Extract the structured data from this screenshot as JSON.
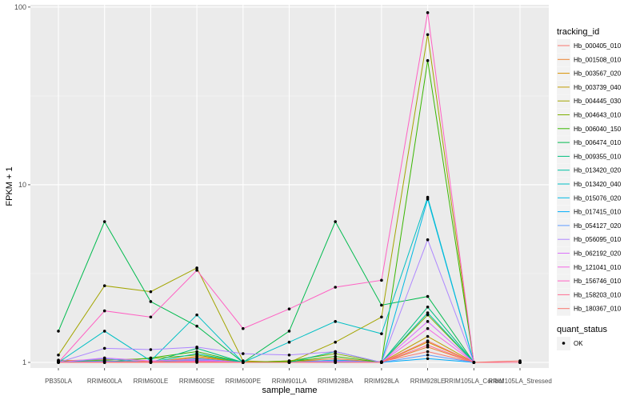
{
  "chart_data": {
    "type": "line",
    "xlabel": "sample_name",
    "ylabel": "FPKM + 1",
    "y_scale": "log10",
    "ylim": [
      0.93,
      103
    ],
    "y_ticks": [
      1,
      10,
      100
    ],
    "y_tick_labels": [
      "1",
      "10",
      "100"
    ],
    "grid": true,
    "legend_position": "right",
    "categories": [
      "PB350LA",
      "RRIM600LA",
      "RRIM600LE",
      "RRIM600SE",
      "RRIM600PE",
      "RRIM901LA",
      "RRIM928BA",
      "RRIM928LA",
      "RRIM928LE",
      "RRIM105LA_Control",
      "RRIM105LA_Stressed"
    ],
    "color_legend": {
      "title": "tracking_id",
      "labels": [
        "Hb_000405_010",
        "Hb_001508_010",
        "Hb_003567_020",
        "Hb_003739_040",
        "Hb_004445_030",
        "Hb_004643_010",
        "Hb_006040_150",
        "Hb_006474_010",
        "Hb_009355_010",
        "Hb_013420_020",
        "Hb_013420_040",
        "Hb_015076_020",
        "Hb_017415_010",
        "Hb_054127_020",
        "Hb_056095_010",
        "Hb_062192_020",
        "Hb_121041_010",
        "Hb_156746_010",
        "Hb_158203_010",
        "Hb_180367_010"
      ]
    },
    "shape_legend": {
      "title": "quant_status",
      "labels": [
        "OK"
      ]
    },
    "series": [
      {
        "name": "Hb_000405_010",
        "color": "#F8766D",
        "values": [
          1.02,
          1.04,
          1.01,
          1.06,
          1.01,
          1.0,
          1.03,
          1.01,
          1.15,
          1.0,
          1.0
        ]
      },
      {
        "name": "Hb_001508_010",
        "color": "#EA8331",
        "values": [
          1.03,
          1.01,
          1.02,
          1.03,
          1.0,
          1.01,
          1.05,
          1.0,
          1.22,
          1.0,
          1.0
        ]
      },
      {
        "name": "Hb_003567_020",
        "color": "#D89000",
        "values": [
          1.01,
          1.02,
          1.0,
          1.08,
          1.0,
          1.02,
          1.02,
          1.0,
          1.3,
          1.0,
          1.0
        ]
      },
      {
        "name": "Hb_003739_040",
        "color": "#C09B00",
        "values": [
          1.0,
          1.01,
          1.01,
          1.02,
          1.0,
          1.0,
          1.01,
          1.0,
          1.4,
          1.0,
          1.0
        ]
      },
      {
        "name": "Hb_004445_030",
        "color": "#A3A500",
        "values": [
          1.1,
          2.7,
          2.5,
          3.4,
          1.02,
          1.0,
          1.3,
          1.8,
          70.0,
          1.0,
          1.0
        ]
      },
      {
        "name": "Hb_004643_010",
        "color": "#7CAE00",
        "values": [
          1.01,
          1.03,
          1.05,
          1.1,
          1.0,
          1.02,
          1.12,
          1.0,
          1.85,
          1.0,
          1.0
        ]
      },
      {
        "name": "Hb_006040_150",
        "color": "#39B600",
        "values": [
          1.02,
          1.0,
          1.06,
          1.15,
          1.0,
          1.01,
          1.08,
          1.0,
          50.0,
          1.0,
          1.0
        ]
      },
      {
        "name": "Hb_006474_010",
        "color": "#00BB4E",
        "values": [
          1.5,
          6.2,
          2.2,
          1.6,
          1.0,
          1.5,
          6.2,
          2.1,
          2.35,
          1.0,
          1.0
        ]
      },
      {
        "name": "Hb_009355_010",
        "color": "#00BF7D",
        "values": [
          1.0,
          1.01,
          1.0,
          1.2,
          1.0,
          1.0,
          1.15,
          1.0,
          2.05,
          1.0,
          1.0
        ]
      },
      {
        "name": "Hb_013420_020",
        "color": "#00C1A3",
        "values": [
          1.0,
          1.0,
          1.0,
          1.12,
          1.0,
          1.0,
          1.02,
          1.0,
          1.9,
          1.0,
          1.0
        ]
      },
      {
        "name": "Hb_013420_040",
        "color": "#00BFC4",
        "values": [
          1.0,
          1.5,
          1.02,
          1.85,
          1.0,
          1.3,
          1.7,
          1.45,
          8.5,
          1.0,
          1.0
        ]
      },
      {
        "name": "Hb_015076_020",
        "color": "#00B9E3",
        "values": [
          1.0,
          1.02,
          1.0,
          1.05,
          1.0,
          1.0,
          1.03,
          1.0,
          8.3,
          1.0,
          1.0
        ]
      },
      {
        "name": "Hb_017415_010",
        "color": "#00ADFA",
        "values": [
          1.0,
          1.0,
          1.0,
          1.01,
          1.0,
          1.0,
          1.0,
          1.0,
          1.05,
          1.0,
          1.0
        ]
      },
      {
        "name": "Hb_054127_020",
        "color": "#619CFF",
        "values": [
          1.0,
          1.05,
          1.0,
          1.03,
          1.0,
          1.0,
          1.01,
          1.0,
          1.1,
          1.0,
          1.0
        ]
      },
      {
        "name": "Hb_056095_010",
        "color": "#AE87FF",
        "values": [
          1.0,
          1.2,
          1.18,
          1.22,
          1.12,
          1.1,
          1.15,
          1.0,
          4.9,
          1.0,
          1.0
        ]
      },
      {
        "name": "Hb_062192_020",
        "color": "#DB72FB",
        "values": [
          1.0,
          1.06,
          1.02,
          1.04,
          1.0,
          1.0,
          1.02,
          1.0,
          1.7,
          1.0,
          1.0
        ]
      },
      {
        "name": "Hb_121041_010",
        "color": "#F564E3",
        "values": [
          1.0,
          1.01,
          1.0,
          1.02,
          1.0,
          1.0,
          1.0,
          1.0,
          1.55,
          1.0,
          1.0
        ]
      },
      {
        "name": "Hb_156746_010",
        "color": "#FF61C3",
        "values": [
          1.0,
          1.95,
          1.8,
          3.3,
          1.55,
          2.0,
          2.65,
          2.9,
          93.0,
          1.0,
          1.0
        ]
      },
      {
        "name": "Hb_158203_010",
        "color": "#FF6C91",
        "values": [
          1.0,
          1.0,
          1.01,
          1.01,
          1.0,
          1.0,
          1.0,
          1.0,
          1.25,
          1.0,
          1.0
        ]
      },
      {
        "name": "Hb_180367_010",
        "color": "#F8766D",
        "values": [
          1.0,
          1.0,
          1.0,
          1.0,
          1.0,
          1.0,
          1.0,
          1.0,
          1.32,
          1.0,
          1.02
        ]
      }
    ]
  }
}
